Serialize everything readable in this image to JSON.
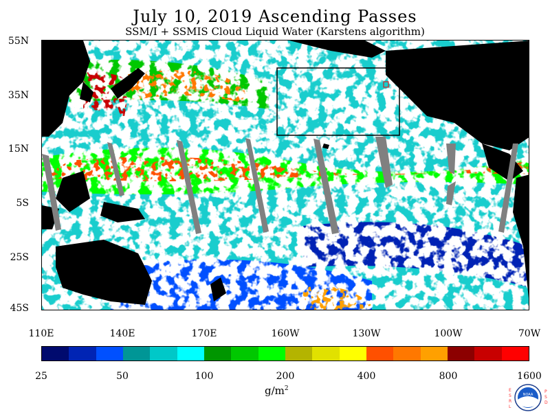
{
  "title": "July 10, 2019  Ascending Passes",
  "subtitle": "SSM/I + SSMIS Cloud Liquid Water (Karstens algorithm)",
  "map": {
    "lat_labels": [
      "55N",
      "35N",
      "15N",
      "5S",
      "25S",
      "45S"
    ],
    "lon_labels": [
      "110E",
      "140E",
      "170E",
      "160W",
      "130W",
      "100W",
      "70W"
    ],
    "lat_range": [
      -45,
      55
    ],
    "lon_range": [
      "110E",
      "70W"
    ],
    "land_color": "#000000",
    "missing_swath_color": "#808080"
  },
  "colorbar": {
    "tick_labels": [
      "25",
      "50",
      "100",
      "200",
      "400",
      "800",
      "1600"
    ],
    "unit_main": "g/m",
    "unit_sup": "2",
    "colors": [
      "#000a6e",
      "#0024b4",
      "#0050ff",
      "#009696",
      "#00c8c8",
      "#00ffff",
      "#009600",
      "#00c800",
      "#00ff00",
      "#b4b400",
      "#e1e100",
      "#ffff00",
      "#ff5000",
      "#ff7800",
      "#ffa000",
      "#8c0000",
      "#c80000",
      "#ff0000"
    ]
  },
  "logo": {
    "left_text": "ESRL",
    "right_text": "PSD",
    "name": "NOAA"
  }
}
